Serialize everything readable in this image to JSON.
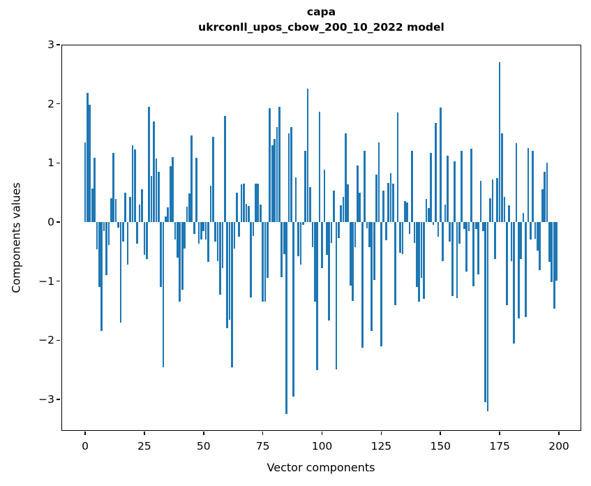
{
  "title_line1": "capa",
  "title_line2": "ukrconll_upos_cbow_200_10_2022 model",
  "chart_data": {
    "type": "bar",
    "title": "capa\nukrconll_upos_cbow_200_10_2022 model",
    "xlabel": "Vector components",
    "ylabel": "Components values",
    "n_components": 200,
    "bar_color": "#1f77b4",
    "grid": false,
    "legend": null,
    "xlim": [
      -10.0,
      209.4
    ],
    "ylim": [
      -3.55,
      3.0
    ],
    "x_ticks": [
      0,
      25,
      50,
      75,
      100,
      125,
      150,
      175,
      200
    ],
    "x_tick_labels": [
      "0",
      "25",
      "50",
      "75",
      "100",
      "125",
      "150",
      "175",
      "200"
    ],
    "y_ticks": [
      3,
      2,
      1,
      0,
      -1,
      -2,
      -3
    ],
    "y_tick_labels": [
      "3",
      "2",
      "1",
      "0",
      "−1",
      "−2",
      "−3"
    ],
    "values": [
      1.35,
      2.18,
      1.98,
      0.57,
      1.09,
      -0.46,
      -1.1,
      -1.84,
      -0.15,
      -0.9,
      -0.39,
      0.4,
      1.17,
      0.39,
      -0.1,
      -1.7,
      -0.33,
      0.5,
      -0.72,
      0.42,
      1.3,
      1.23,
      -0.37,
      0.29,
      0.56,
      -0.55,
      -0.62,
      1.95,
      0.78,
      1.7,
      1.08,
      0.85,
      -1.1,
      -2.45,
      0.1,
      0.25,
      0.95,
      1.1,
      -0.3,
      -0.6,
      -1.35,
      -1.15,
      -0.45,
      0.26,
      0.48,
      1.46,
      -0.2,
      1.09,
      -0.37,
      -0.3,
      -0.15,
      -0.3,
      -0.67,
      0.61,
      1.44,
      -0.33,
      -0.66,
      -1.23,
      -0.78,
      1.8,
      -1.8,
      -1.65,
      -2.45,
      -0.45,
      0.5,
      -0.25,
      0.64,
      0.65,
      0.31,
      0.27,
      -1.28,
      -0.24,
      0.65,
      0.65,
      0.3,
      -1.35,
      -1.35,
      -0.95,
      1.93,
      1.3,
      1.4,
      1.6,
      1.95,
      -0.93,
      -0.54,
      -3.25,
      1.5,
      1.6,
      -2.95,
      0.75,
      -0.58,
      -0.72,
      -0.05,
      1.2,
      2.25,
      0.59,
      -0.43,
      -1.35,
      -2.5,
      1.87,
      -0.78,
      0.89,
      -0.56,
      -1.67,
      -0.35,
      0.53,
      -2.49,
      -0.27,
      0.28,
      0.42,
      1.5,
      0.64,
      -1.07,
      -1.33,
      -0.43,
      0.96,
      0.5,
      -2.12,
      1.21,
      -0.11,
      -0.43,
      -1.84,
      -0.98,
      0.8,
      1.35,
      -2.1,
      0.53,
      -0.31,
      0.66,
      0.83,
      0.65,
      -1.41,
      1.85,
      -0.52,
      -0.54,
      0.35,
      0.33,
      -0.2,
      1.21,
      -0.35,
      -1.1,
      -1.35,
      -0.95,
      -1.3,
      0.39,
      0.24,
      1.17,
      -0.05,
      1.68,
      -0.25,
      1.94,
      -0.66,
      0.3,
      1.12,
      -0.33,
      -1.25,
      1.03,
      -1.29,
      -0.37,
      1.21,
      -0.12,
      -0.84,
      -0.15,
      1.24,
      -1.09,
      -0.12,
      -0.88,
      0.7,
      -0.15,
      -3.05,
      -3.2,
      0.4,
      0.72,
      -0.62,
      0.74,
      2.7,
      1.5,
      0.42,
      -1.41,
      0.28,
      -0.66,
      -2.06,
      1.33,
      -1.63,
      -0.62,
      0.15,
      -1.6,
      1.25,
      -0.3,
      1.2,
      -0.28,
      -0.48,
      -0.81,
      0.55,
      0.85,
      1.0,
      -0.67,
      -1.01,
      -1.46,
      -0.99
    ]
  }
}
